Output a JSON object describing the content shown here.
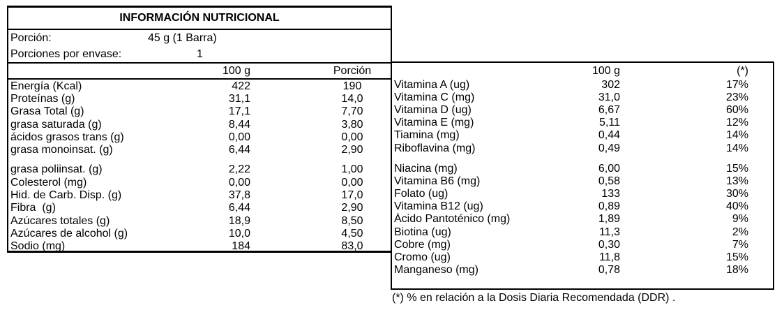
{
  "colors": {
    "border": "#000000",
    "text": "#000000",
    "background": "#ffffff"
  },
  "left_table": {
    "title": "INFORMACIÓN NUTRICIONAL",
    "serving": {
      "label": "Porción:",
      "value": "45 g (1 Barra)"
    },
    "servings_per_pack": {
      "label": "Porciones por envase:",
      "value": "1"
    },
    "columns": [
      "100 g",
      "Porción"
    ],
    "rows": [
      {
        "label": "Energía (Kcal)",
        "per100": "422",
        "portion": "190"
      },
      {
        "label": "Proteínas (g)",
        "per100": "31,1",
        "portion": "14,0"
      },
      {
        "label": "Grasa Total (g)",
        "per100": "17,1",
        "portion": "7,70"
      },
      {
        "label": "grasa saturada (g)",
        "per100": "8,44",
        "portion": "3,80"
      },
      {
        "label": "ácidos grasos trans (g)",
        "per100": "0,00",
        "portion": "0,00"
      },
      {
        "label": "grasa monoinsat. (g)",
        "per100": "6,44",
        "portion": "2,90"
      },
      {
        "label": "grasa poliinsat. (g)",
        "per100": "2,22",
        "portion": "1,00",
        "gap_before": true
      },
      {
        "label": "Colesterol (mg)",
        "per100": "0,00",
        "portion": "0,00"
      },
      {
        "label": "Hid. de Carb. Disp. (g)",
        "per100": "37,8",
        "portion": "17,0"
      },
      {
        "label": "Fibra  (g)",
        "per100": "6,44",
        "portion": "2,90"
      },
      {
        "label": "Azúcares totales (g)",
        "per100": "18,9",
        "portion": "8,50"
      },
      {
        "label": "Azúcares de alcohol (g)",
        "per100": "10,0",
        "portion": "4,50"
      },
      {
        "label": "Sodio (mg)",
        "per100": "184",
        "portion": "83,0"
      }
    ]
  },
  "right_table": {
    "columns": [
      "100 g",
      "(*)"
    ],
    "rows": [
      {
        "label": "Vitamina A (ug)",
        "per100": "302",
        "ddr": "17%"
      },
      {
        "label": "Vitamina C (mg)",
        "per100": "31,0",
        "ddr": "23%"
      },
      {
        "label": "Vitamina D (ug)",
        "per100": "6,67",
        "ddr": "60%"
      },
      {
        "label": "Vitamina E (mg)",
        "per100": "5,11",
        "ddr": "12%"
      },
      {
        "label": "Tiamina (mg)",
        "per100": "0,44",
        "ddr": "14%"
      },
      {
        "label": "Riboflavina (mg)",
        "per100": "0,49",
        "ddr": "14%"
      },
      {
        "label": "Niacina (mg)",
        "per100": "6,00",
        "ddr": "15%",
        "gap_before": true
      },
      {
        "label": "Vitamina B6 (mg)",
        "per100": "0,58",
        "ddr": "13%"
      },
      {
        "label": "Folato (ug)",
        "per100": "133",
        "ddr": "30%"
      },
      {
        "label": "Vitamina B12 (ug)",
        "per100": "0,89",
        "ddr": "40%"
      },
      {
        "label": "Ácido Pantoténico (mg)",
        "per100": "1,89",
        "ddr": "9%"
      },
      {
        "label": "Biotina (ug)",
        "per100": "11,3",
        "ddr": "2%"
      },
      {
        "label": "Cobre (mg)",
        "per100": "0,30",
        "ddr": "7%"
      },
      {
        "label": "Cromo (ug)",
        "per100": "11,8",
        "ddr": "15%"
      },
      {
        "label": "Manganeso (mg)",
        "per100": "0,78",
        "ddr": "18%"
      }
    ],
    "footnote": "(*) % en relación a la Dosis Diaria Recomendada (DDR) ."
  }
}
